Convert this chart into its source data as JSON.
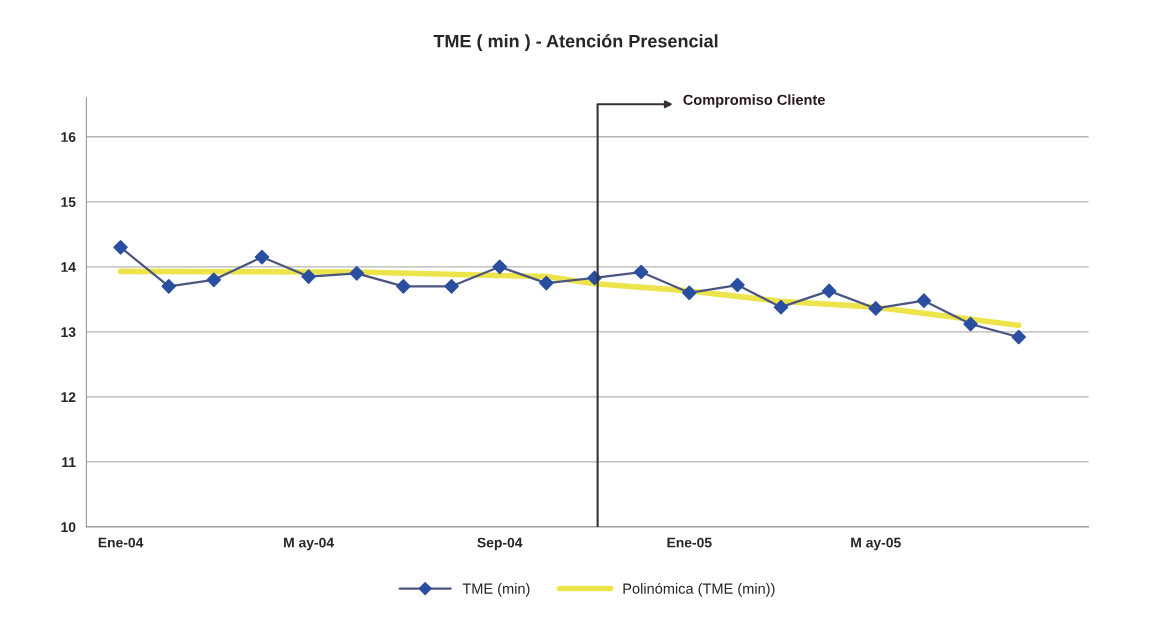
{
  "chart_data": {
    "type": "line",
    "title": "TME ( min ) - Atención Presencial",
    "x": [
      "2004-01",
      "2004-02",
      "2004-03",
      "2004-04",
      "2004-05",
      "2004-06",
      "2004-07",
      "2004-08",
      "2004-09",
      "2004-10",
      "2004-11",
      "2004-12",
      "2005-01",
      "2005-02",
      "2005-03",
      "2005-04",
      "2005-05",
      "2005-06",
      "2005-07",
      "2005-08"
    ],
    "series": [
      {
        "name": "TME (min)",
        "color": "#2a4fa0",
        "marker": "diamond",
        "values": [
          14.3,
          13.7,
          13.8,
          14.15,
          13.85,
          13.9,
          13.7,
          13.7,
          14.0,
          13.75,
          13.83,
          13.92,
          13.6,
          13.72,
          13.38,
          13.63,
          13.36,
          13.48,
          13.12,
          12.92
        ]
      },
      {
        "name": "Polinómica (TME (min))",
        "type": "line",
        "color": "#ece44a",
        "marker": "none",
        "x": [
          "2004-01",
          "2004-06",
          "2004-10",
          "2004-11",
          "2005-01",
          "2005-03",
          "2005-05",
          "2005-08"
        ],
        "values": [
          13.93,
          13.92,
          13.85,
          13.74,
          13.63,
          13.47,
          13.38,
          13.1
        ]
      }
    ],
    "xlim": [
      "2003-12-10",
      "2005-09-15"
    ],
    "xticks": [
      {
        "value": "2004-01",
        "label": "Ene-04"
      },
      {
        "value": "2004-05",
        "label": "M ay-04"
      },
      {
        "value": "2004-09",
        "label": "Sep-04"
      },
      {
        "value": "2005-01",
        "label": "Ene-05"
      },
      {
        "value": "2005-05",
        "label": "M ay-05"
      }
    ],
    "ylim": [
      10,
      16.6
    ],
    "yticks": [
      10,
      11,
      12,
      13,
      14,
      15,
      16
    ],
    "ref_lines": [
      {
        "axis": "x",
        "value": "2004-11-03",
        "label": "Compromiso Cliente",
        "color": "#3a3035"
      }
    ],
    "grid": "y",
    "legend": "bottom"
  }
}
